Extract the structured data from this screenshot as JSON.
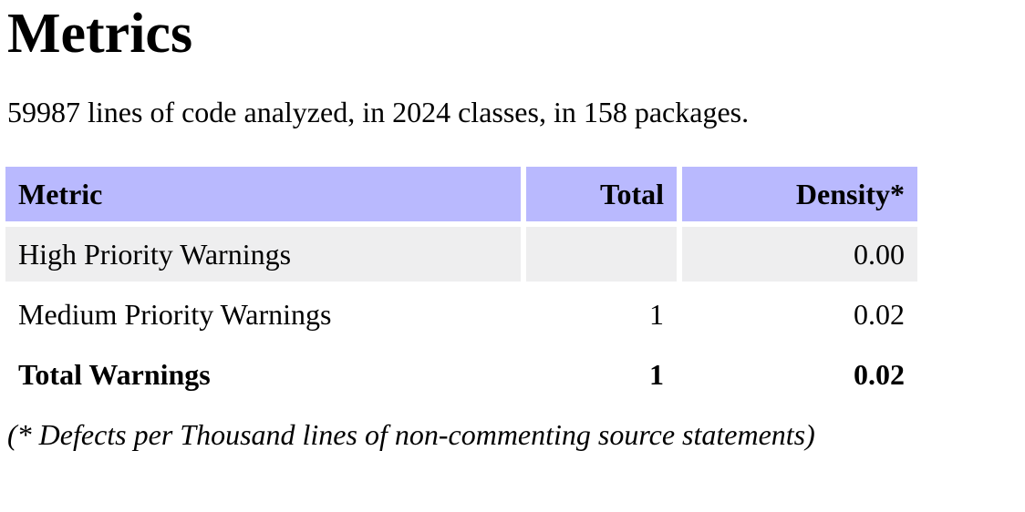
{
  "page": {
    "title": "Metrics",
    "summary": "59987 lines of code analyzed, in 2024 classes, in 158 packages.",
    "footnote": "(* Defects per Thousand lines of non-commenting source statements)"
  },
  "colors": {
    "header_bg": "#b9b9fe",
    "shaded_row_bg": "#eeeeef",
    "plain_row_bg": "#ffffff",
    "text": "#000000",
    "page_bg": "#ffffff"
  },
  "metrics_table": {
    "columns": [
      {
        "label": "Metric",
        "align": "left"
      },
      {
        "label": "Total",
        "align": "right"
      },
      {
        "label": "Density*",
        "align": "right"
      }
    ],
    "rows": [
      {
        "metric": "High Priority Warnings",
        "total": "",
        "density": "0.00",
        "bold": false,
        "shaded": true
      },
      {
        "metric": "Medium Priority Warnings",
        "total": "1",
        "density": "0.02",
        "bold": false,
        "shaded": false
      },
      {
        "metric": "Total Warnings",
        "total": "1",
        "density": "0.02",
        "bold": true,
        "shaded": false
      }
    ]
  }
}
